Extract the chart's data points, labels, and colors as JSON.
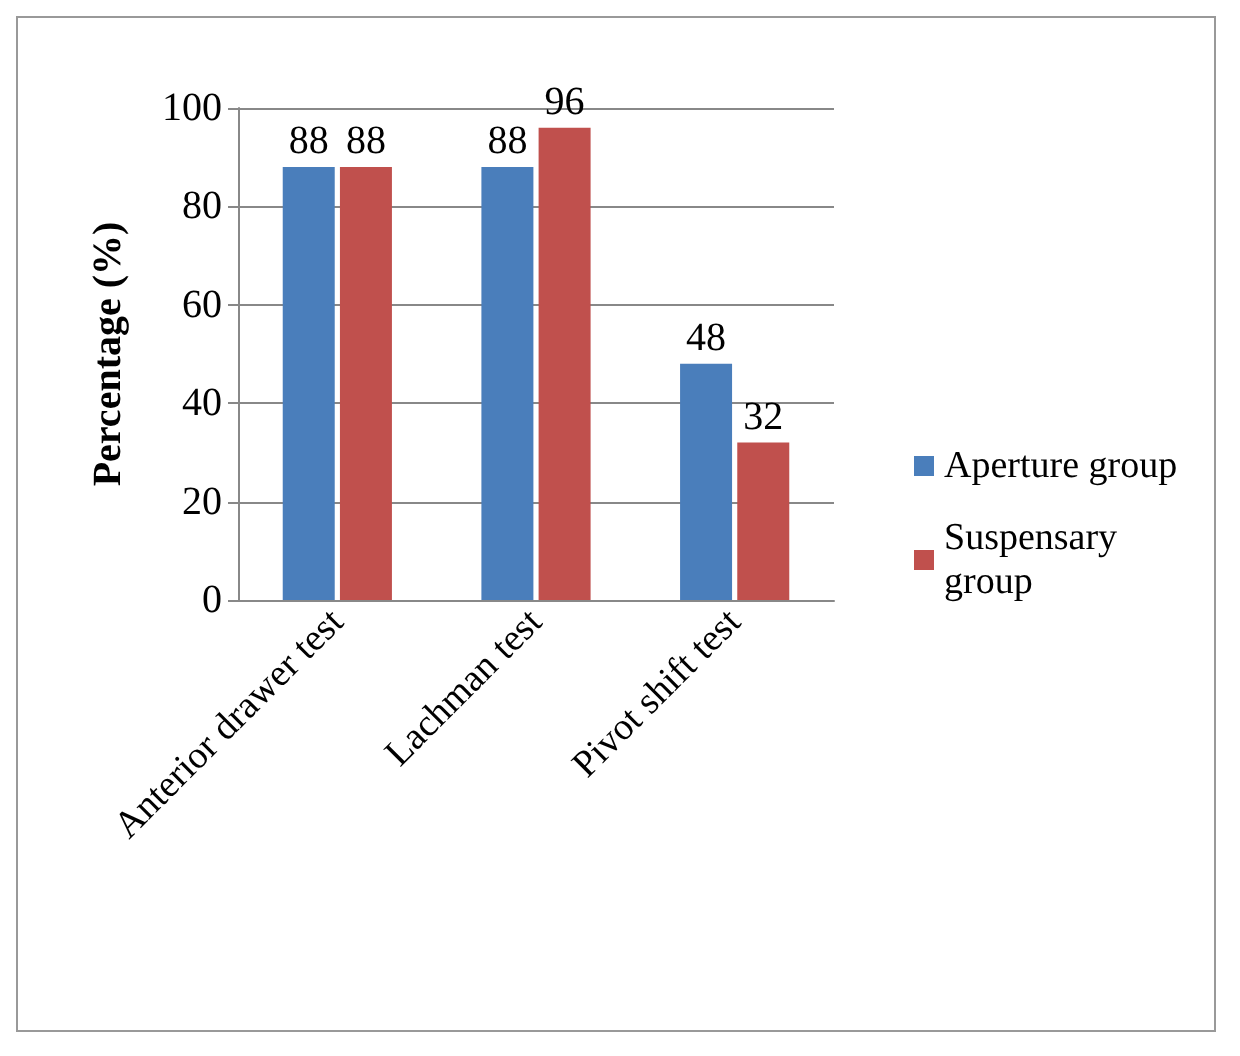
{
  "chart_data": {
    "type": "bar",
    "ylabel": "Percentage (%)",
    "categories": [
      "Anterior drawer test",
      "Lachman test",
      "Pivot shift test"
    ],
    "series": [
      {
        "name": "Aperture group",
        "color": "#4a7ebb",
        "values": [
          88,
          88,
          48
        ]
      },
      {
        "name": "Suspensary group",
        "color": "#c0504d",
        "values": [
          88,
          96,
          32
        ]
      }
    ],
    "ylim": [
      0,
      100
    ],
    "yticks": [
      0,
      20,
      40,
      60,
      80,
      100
    ],
    "grid": "y",
    "legend": "right",
    "data_labels": true
  }
}
